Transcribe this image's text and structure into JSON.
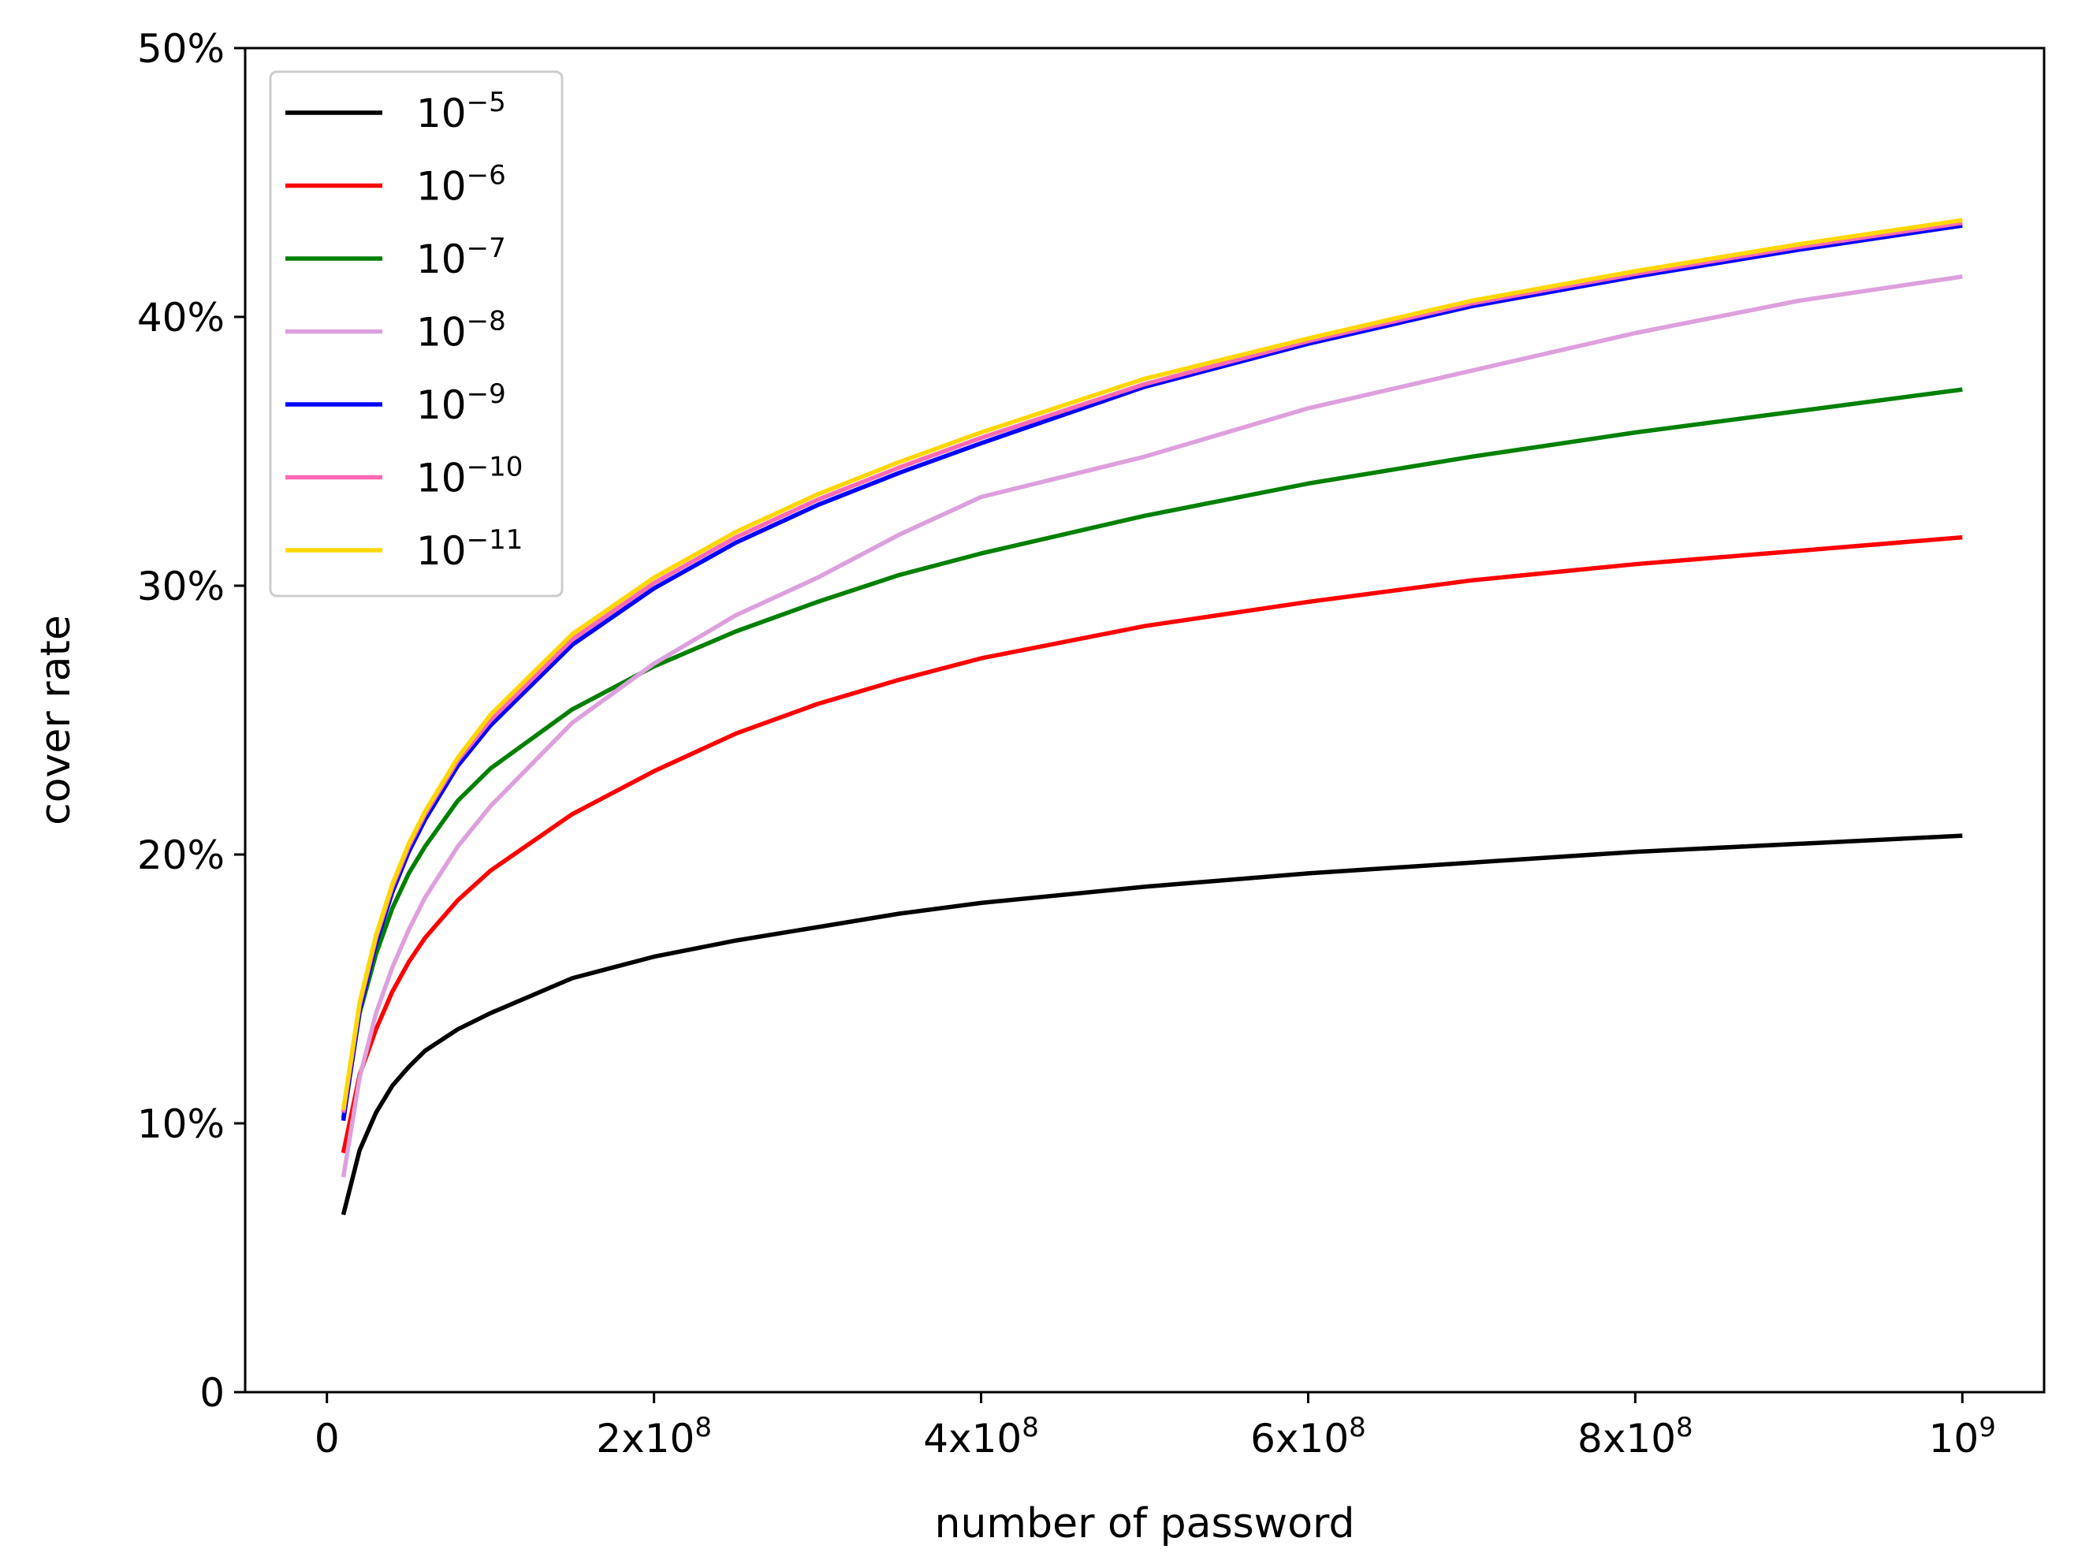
{
  "chart_data": {
    "type": "line",
    "title": "",
    "xlabel": "number of password",
    "ylabel": "cover rate",
    "xlim": [
      -50000000,
      1050000000
    ],
    "ylim": [
      0,
      0.5
    ],
    "grid": false,
    "legend_position": "top-left",
    "x_ticks": [
      {
        "value": 0,
        "label": "0",
        "sup": ""
      },
      {
        "value": 200000000,
        "label": "2x10",
        "sup": "8"
      },
      {
        "value": 400000000,
        "label": "4x10",
        "sup": "8"
      },
      {
        "value": 600000000,
        "label": "6x10",
        "sup": "8"
      },
      {
        "value": 800000000,
        "label": "8x10",
        "sup": "8"
      },
      {
        "value": 1000000000,
        "label": "10",
        "sup": "9"
      }
    ],
    "y_ticks": [
      {
        "value": 0,
        "label": "0"
      },
      {
        "value": 0.1,
        "label": "10%"
      },
      {
        "value": 0.2,
        "label": "20%"
      },
      {
        "value": 0.3,
        "label": "30%"
      },
      {
        "value": 0.4,
        "label": "40%"
      },
      {
        "value": 0.5,
        "label": "50%"
      }
    ],
    "x": [
      10000000,
      20000000,
      30000000,
      40000000,
      50000000,
      60000000,
      80000000,
      100000000,
      150000000,
      200000000,
      250000000,
      300000000,
      350000000,
      400000000,
      500000000,
      600000000,
      700000000,
      800000000,
      900000000,
      1000000000
    ],
    "series": [
      {
        "name": "10",
        "sup": "−5",
        "color": "#000000",
        "values": [
          0.066,
          0.09,
          0.104,
          0.114,
          0.121,
          0.127,
          0.135,
          0.141,
          0.154,
          0.162,
          0.168,
          0.173,
          0.178,
          0.182,
          0.188,
          0.193,
          0.197,
          0.201,
          0.204,
          0.207
        ]
      },
      {
        "name": "10",
        "sup": "−6",
        "color": "#ff0000",
        "values": [
          0.089,
          0.118,
          0.135,
          0.149,
          0.16,
          0.169,
          0.183,
          0.194,
          0.215,
          0.231,
          0.245,
          0.256,
          0.265,
          0.273,
          0.285,
          0.294,
          0.302,
          0.308,
          0.313,
          0.318
        ]
      },
      {
        "name": "10",
        "sup": "−7",
        "color": "#008000",
        "values": [
          0.102,
          0.141,
          0.163,
          0.18,
          0.193,
          0.203,
          0.22,
          0.232,
          0.254,
          0.27,
          0.283,
          0.294,
          0.304,
          0.312,
          0.326,
          0.338,
          0.348,
          0.357,
          0.365,
          0.373
        ]
      },
      {
        "name": "10",
        "sup": "−8",
        "color": "#dda0dd",
        "values": [
          0.08,
          0.117,
          0.141,
          0.158,
          0.172,
          0.184,
          0.203,
          0.218,
          0.249,
          0.271,
          0.289,
          0.303,
          0.319,
          0.333,
          0.348,
          0.366,
          0.38,
          0.394,
          0.406,
          0.415
        ]
      },
      {
        "name": "10",
        "sup": "−9",
        "color": "#0000ff",
        "values": [
          0.101,
          0.142,
          0.167,
          0.186,
          0.201,
          0.213,
          0.233,
          0.248,
          0.278,
          0.299,
          0.316,
          0.33,
          0.342,
          0.353,
          0.374,
          0.39,
          0.404,
          0.415,
          0.425,
          0.434
        ]
      },
      {
        "name": "10",
        "sup": "−10",
        "color": "#ff69b4",
        "values": [
          0.104,
          0.144,
          0.169,
          0.188,
          0.203,
          0.215,
          0.235,
          0.25,
          0.28,
          0.301,
          0.318,
          0.332,
          0.344,
          0.355,
          0.375,
          0.391,
          0.405,
          0.416,
          0.426,
          0.435
        ]
      },
      {
        "name": "10",
        "sup": "−11",
        "color": "#ffd700",
        "values": [
          0.105,
          0.145,
          0.17,
          0.189,
          0.204,
          0.216,
          0.236,
          0.252,
          0.282,
          0.303,
          0.32,
          0.334,
          0.346,
          0.357,
          0.377,
          0.392,
          0.406,
          0.417,
          0.427,
          0.436
        ]
      }
    ]
  }
}
